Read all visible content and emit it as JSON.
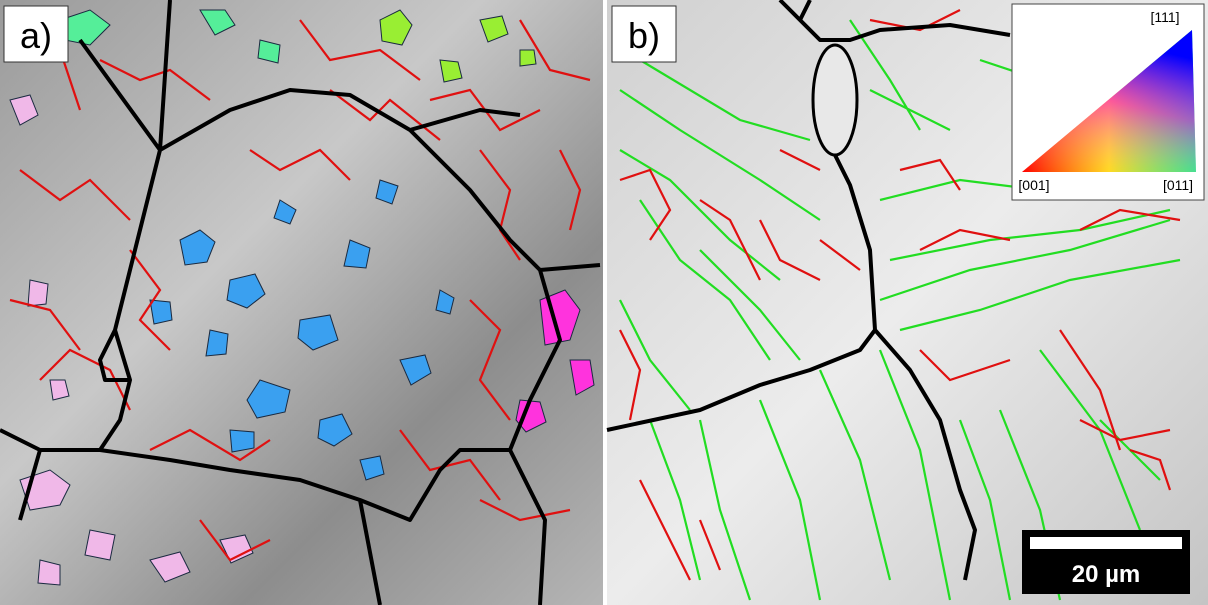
{
  "panels": [
    {
      "label": "a)"
    },
    {
      "label": "b)",
      "legend": {
        "top": "[111]",
        "left": "[001]",
        "right": "[011]"
      },
      "scale_bar": "20 µm"
    }
  ]
}
